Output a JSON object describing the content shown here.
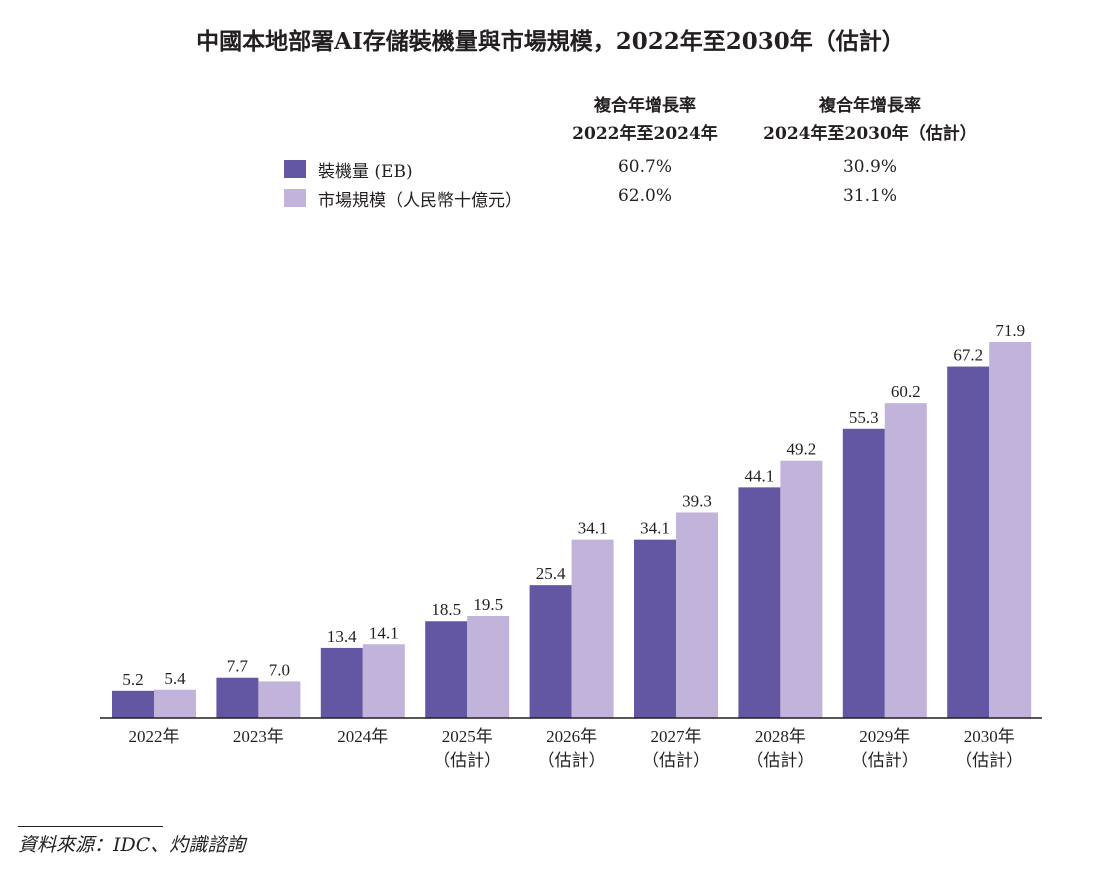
{
  "title": "中國本地部署AI存儲裝機量與市場規模，2022年至2030年（估計）",
  "cagr_headers": [
    {
      "line1": "複合年增長率",
      "line2": "2022年至2024年"
    },
    {
      "line1": "複合年增長率",
      "line2": "2024年至2030年（估計）"
    }
  ],
  "legend": [
    {
      "label": "裝機量 (EB)",
      "color": "#6356a3",
      "cagr": [
        "60.7%",
        "30.9%"
      ]
    },
    {
      "label": "市場規模（人民幣十億元）",
      "color": "#c1b3d9",
      "cagr": [
        "62.0%",
        "31.1%"
      ]
    }
  ],
  "source": "資料來源：IDC、灼識諮詢",
  "chart_data": {
    "type": "bar",
    "categories": [
      [
        "2022年"
      ],
      [
        "2023年"
      ],
      [
        "2024年"
      ],
      [
        "2025年",
        "（估計）"
      ],
      [
        "2026年",
        "（估計）"
      ],
      [
        "2027年",
        "（估計）"
      ],
      [
        "2028年",
        "（估計）"
      ],
      [
        "2029年",
        "（估計）"
      ],
      [
        "2030年",
        "（估計）"
      ]
    ],
    "series": [
      {
        "name": "裝機量 (EB)",
        "color": "#6356a3",
        "values": [
          5.2,
          7.7,
          13.4,
          18.5,
          25.4,
          34.1,
          44.1,
          55.3,
          67.2
        ]
      },
      {
        "name": "市場規模（人民幣十億元）",
        "color": "#c1b3d9",
        "values": [
          5.4,
          7.0,
          14.1,
          19.5,
          34.1,
          39.3,
          49.2,
          60.2,
          71.9
        ]
      }
    ],
    "ylim": [
      0,
      72
    ],
    "grid": false,
    "legend": "top"
  }
}
